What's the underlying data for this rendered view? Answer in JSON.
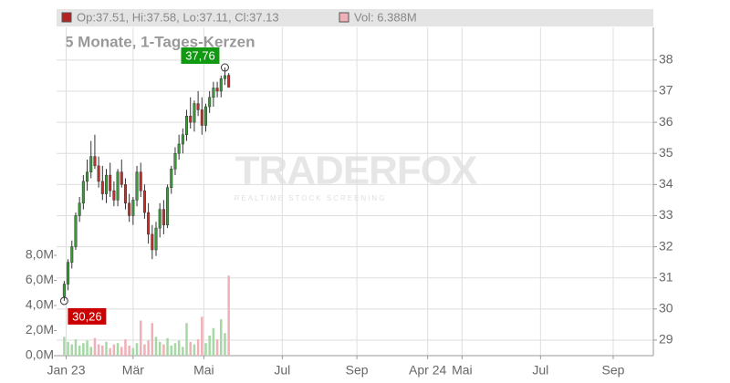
{
  "chart_data": {
    "type": "candlestick",
    "title": "5 Monate, 1-Tages-Kerzen",
    "header": {
      "ohlc": "Op:37.51, Hi:37.58, Lo:37.11, Cl:37.13",
      "volume": "Vol: 6.388M"
    },
    "watermark": {
      "brand": "TRADERFOX",
      "tagline": "REALTIME STOCK SCREENING"
    },
    "up_color": "#3a9a3a",
    "down_color": "#c0302a",
    "vol_up_color": "#a6d8a6",
    "vol_down_color": "#f0b0b8",
    "grid": true,
    "xlim": [
      -2,
      154
    ],
    "xticks": [
      {
        "value": 0.5,
        "label": "Jan 23"
      },
      {
        "value": 18,
        "label": "Mär"
      },
      {
        "value": 36.5,
        "label": "Mai"
      },
      {
        "value": 57,
        "label": "Jul"
      },
      {
        "value": 76.5,
        "label": "Sep"
      },
      {
        "value": 95,
        "label": "Apr 24"
      },
      {
        "value": 104,
        "label": "Mai"
      },
      {
        "value": 124.5,
        "label": "Jul"
      },
      {
        "value": 143.5,
        "label": "Sep"
      }
    ],
    "ylim": [
      28.5,
      39.05
    ],
    "yticks": [
      29,
      30,
      31,
      32,
      33,
      34,
      35,
      36,
      37,
      38
    ],
    "y2lim": [
      0,
      26180000
    ],
    "y2ticks": [
      {
        "value": 0,
        "label": "0,0M"
      },
      {
        "value": 2000000,
        "label": "2,0M"
      },
      {
        "value": 4000000,
        "label": "4,0M"
      },
      {
        "value": 6000000,
        "label": "6,0M"
      },
      {
        "value": 8000000,
        "label": "8,0M"
      }
    ],
    "open": [
      30.4,
      30.8,
      31.5,
      32.0,
      33.0,
      33.4,
      34.1,
      34.4,
      34.9,
      34.6,
      34.1,
      33.7,
      34.3,
      33.8,
      33.5,
      34.4,
      34.0,
      33.4,
      33.0,
      33.5,
      34.4,
      33.8,
      33.1,
      32.4,
      31.9,
      32.6,
      33.2,
      32.7,
      33.9,
      34.5,
      35.0,
      35.3,
      35.6,
      36.2,
      36.0,
      36.6,
      36.4,
      35.9,
      36.5,
      36.8,
      37.1,
      37.0,
      37.4,
      37.51
    ],
    "high": [
      30.9,
      31.6,
      32.2,
      33.1,
      33.6,
      34.3,
      34.8,
      35.4,
      35.6,
      34.9,
      34.6,
      34.5,
      34.7,
      34.1,
      34.5,
      34.8,
      34.2,
      33.7,
      33.6,
      34.6,
      34.7,
      34.0,
      33.4,
      32.7,
      32.8,
      33.4,
      33.5,
      34.0,
      34.6,
      35.2,
      35.6,
      35.8,
      36.4,
      36.8,
      36.7,
      37.0,
      36.8,
      36.6,
      37.0,
      37.3,
      37.3,
      37.5,
      37.76,
      37.58
    ],
    "low": [
      30.26,
      30.6,
      31.3,
      31.9,
      32.8,
      33.2,
      33.8,
      34.2,
      34.5,
      33.9,
      33.5,
      33.4,
      33.6,
      33.3,
      33.3,
      33.9,
      33.2,
      32.8,
      32.7,
      33.3,
      33.6,
      32.9,
      32.1,
      31.6,
      31.7,
      32.3,
      32.4,
      32.6,
      33.7,
      34.3,
      34.8,
      35.0,
      35.4,
      35.8,
      35.7,
      36.2,
      35.6,
      35.7,
      36.3,
      36.5,
      36.8,
      36.8,
      37.2,
      37.11
    ],
    "close": [
      30.8,
      31.5,
      32.0,
      33.0,
      33.4,
      34.1,
      34.4,
      34.9,
      34.6,
      34.1,
      33.7,
      34.3,
      33.8,
      33.5,
      34.4,
      34.0,
      33.4,
      33.0,
      33.5,
      34.4,
      33.8,
      33.1,
      32.4,
      31.9,
      32.6,
      33.2,
      32.7,
      33.9,
      34.5,
      35.0,
      35.3,
      35.6,
      36.2,
      36.0,
      36.6,
      36.4,
      35.9,
      36.5,
      36.8,
      37.1,
      37.0,
      37.4,
      37.5,
      37.13
    ],
    "volume": [
      1500000,
      1100000,
      900000,
      1300000,
      800000,
      1000000,
      1200000,
      700000,
      1400000,
      900000,
      800000,
      1100000,
      600000,
      900000,
      1000000,
      700000,
      1300000,
      800000,
      600000,
      1000000,
      2800000,
      900000,
      1200000,
      2600000,
      1500000,
      1100000,
      900000,
      1400000,
      800000,
      1000000,
      1200000,
      700000,
      2600000,
      1100000,
      900000,
      1300000,
      3100000,
      1000000,
      1600000,
      2200000,
      1300000,
      2900000,
      1800000,
      6388000
    ],
    "annotations": [
      {
        "index": 42,
        "value": 37.76,
        "label": "37,76"
      },
      {
        "index": 0,
        "value": 30.26,
        "label": "30,26"
      }
    ]
  }
}
